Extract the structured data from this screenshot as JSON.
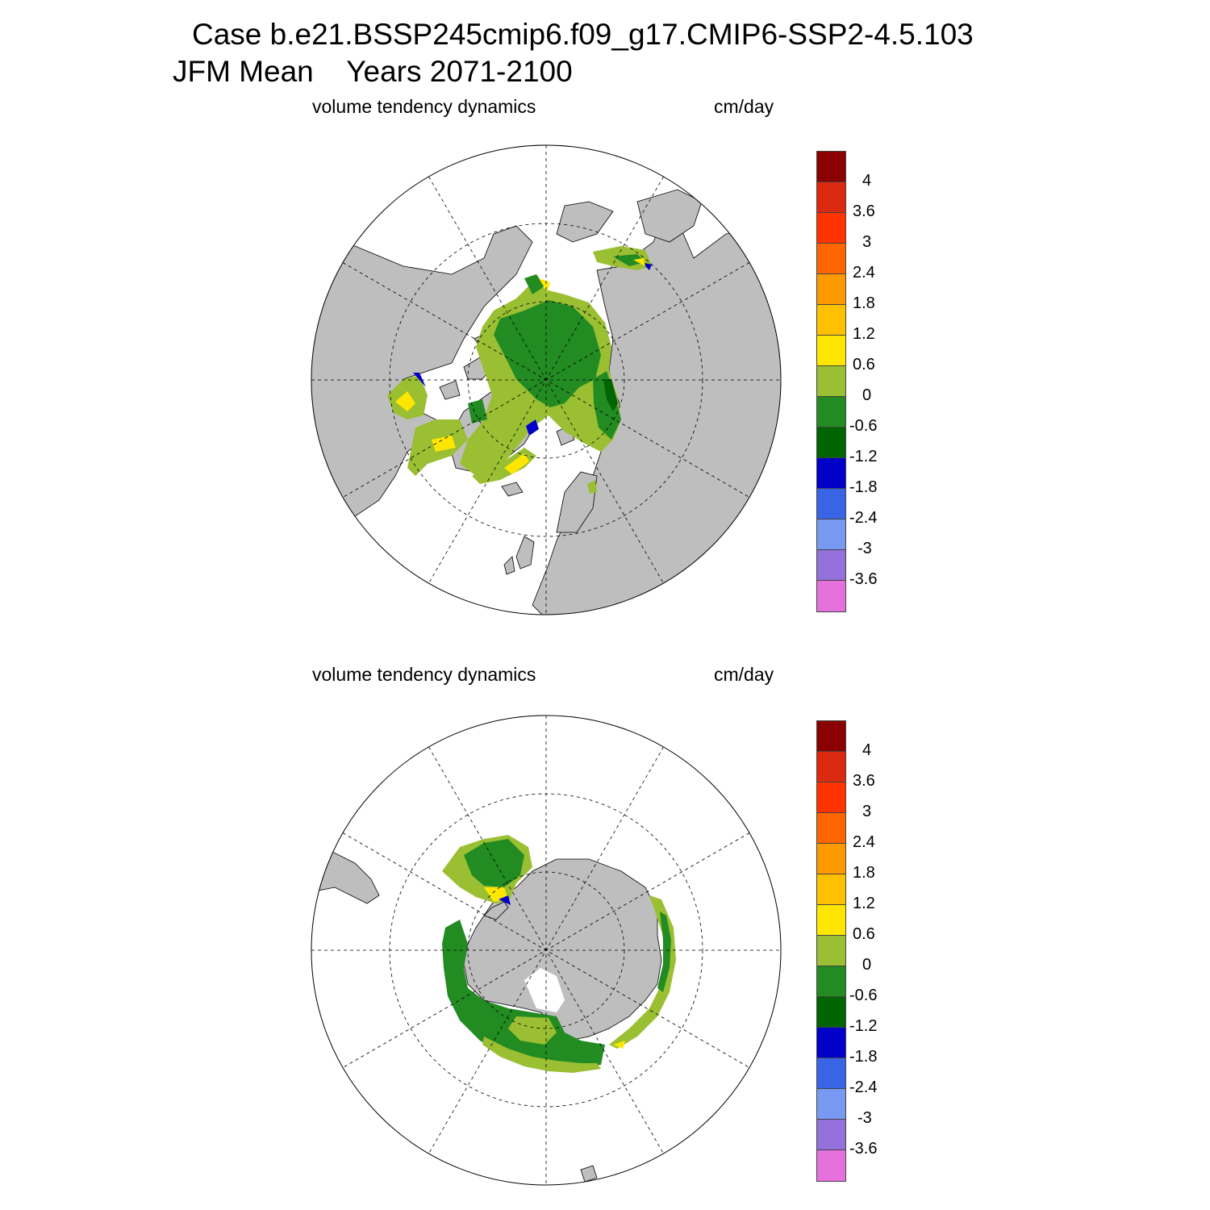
{
  "title": {
    "line1": "Case b.e21.BSSP245cmip6.f09_g17.CMIP6-SSP2-4.5.103",
    "line2": "JFM Mean    Years 2071-2100"
  },
  "panels": [
    {
      "id": "north",
      "hemisphere": "north",
      "left_label": "volume tendency dynamics",
      "right_label": "cm/day"
    },
    {
      "id": "south",
      "hemisphere": "south",
      "left_label": "volume tendency dynamics",
      "right_label": "cm/day"
    }
  ],
  "colorbar": {
    "units": "cm/day",
    "colors": [
      "#8b0000",
      "#dc2a10",
      "#ff3300",
      "#ff6600",
      "#ff9900",
      "#ffc000",
      "#ffe600",
      "#9abf33",
      "#228b22",
      "#006400",
      "#0000c8",
      "#3a64e6",
      "#7799f2",
      "#9370db",
      "#e670dc"
    ],
    "tick_labels": [
      "4",
      "3.6",
      "3",
      "2.4",
      "1.8",
      "1.2",
      "0.6",
      "0",
      "-0.6",
      "-1.2",
      "-1.8",
      "-2.4",
      "-3",
      "-3.6"
    ]
  },
  "map_colors": {
    "land": "#bebebe",
    "ocean": "#ffffff",
    "coast": "#000000",
    "grid": "#000000"
  }
}
